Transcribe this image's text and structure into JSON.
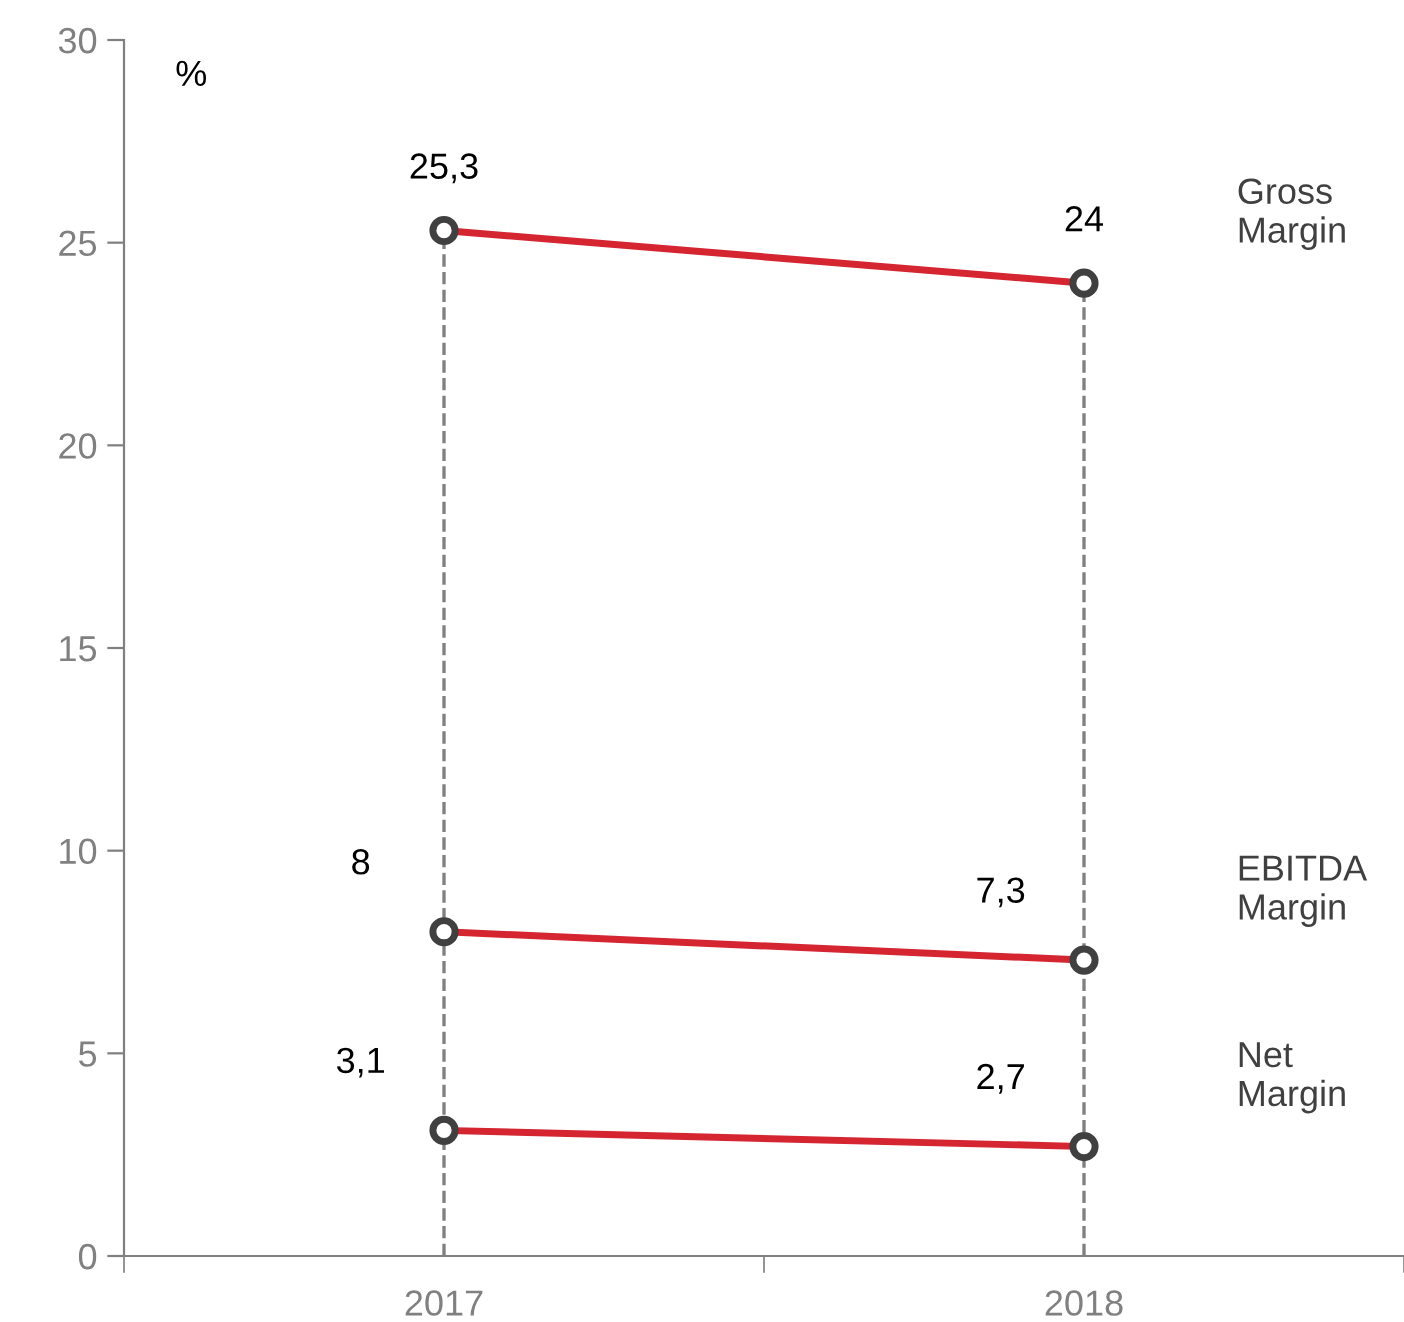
{
  "chart_data": {
    "type": "line",
    "ylabel": "%",
    "categories": [
      "2017",
      "2018"
    ],
    "series": [
      {
        "name": "Gross Margin",
        "color": "#d42531",
        "values": [
          25.3,
          24
        ],
        "value_labels": [
          "25,3",
          "24"
        ]
      },
      {
        "name": "EBITDA Margin",
        "color": "#d42531",
        "values": [
          8,
          7.3
        ],
        "value_labels": [
          "8",
          "7,3"
        ]
      },
      {
        "name": "Net Margin",
        "color": "#d42531",
        "values": [
          3.1,
          2.7
        ],
        "value_labels": [
          "3,1",
          "2,7"
        ]
      }
    ],
    "ylim": [
      0,
      30
    ],
    "yticks": [
      0,
      5,
      10,
      15,
      20,
      25,
      30
    ],
    "marker": "circle",
    "line_style": "solid",
    "grid": false,
    "legend": false,
    "ref_lines": [
      {
        "axis": "x",
        "value": "2017",
        "color": "#808080",
        "line_style": "dashed"
      },
      {
        "axis": "x",
        "value": "2018",
        "color": "#808080",
        "line_style": "dashed"
      }
    ]
  }
}
